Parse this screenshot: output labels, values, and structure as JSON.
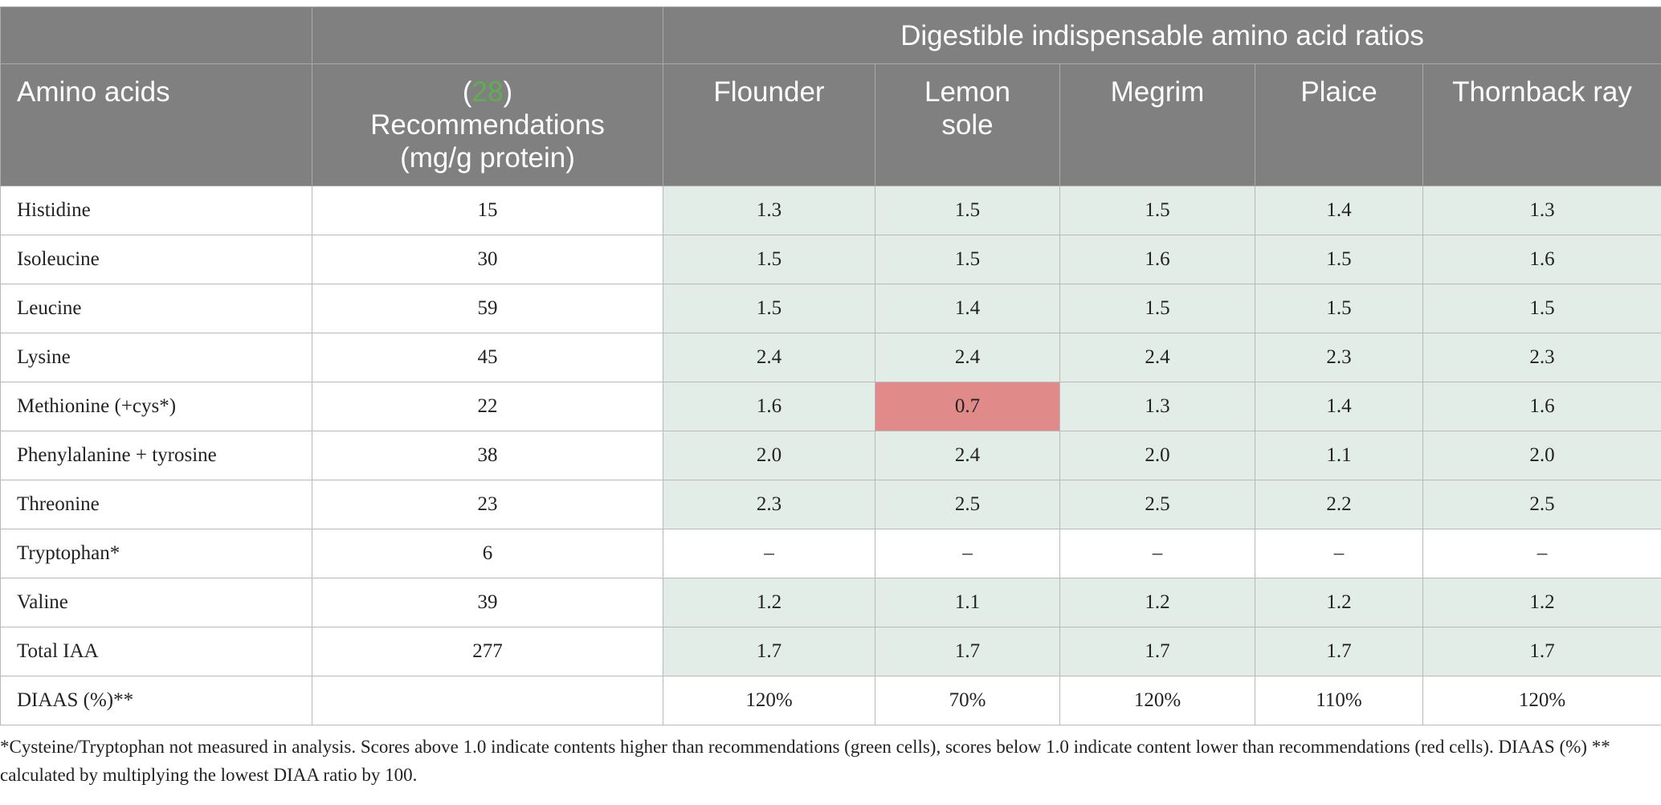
{
  "header": {
    "group_title": "Digestible indispensable amino acid ratios",
    "col_amino": "Amino acids",
    "rec_ref_open": "(",
    "rec_ref": "28",
    "rec_ref_close": ")",
    "rec_line2": "Recommendations",
    "rec_line3": "(mg/g protein)",
    "species": [
      "Flounder",
      "Lemon\nsole",
      "Megrim",
      "Plaice",
      "Thornback ray"
    ]
  },
  "colors": {
    "header_bg": "#7f807f",
    "green_cell": "#e3ede8",
    "red_cell": "#e08a8a",
    "reference_green": "#5fae4f"
  },
  "rows": [
    {
      "name": "Histidine",
      "rec": "15",
      "values": [
        "1.3",
        "1.5",
        "1.5",
        "1.4",
        "1.3"
      ],
      "status": [
        "g",
        "g",
        "g",
        "g",
        "g"
      ]
    },
    {
      "name": "Isoleucine",
      "rec": "30",
      "values": [
        "1.5",
        "1.5",
        "1.6",
        "1.5",
        "1.6"
      ],
      "status": [
        "g",
        "g",
        "g",
        "g",
        "g"
      ]
    },
    {
      "name": "Leucine",
      "rec": "59",
      "values": [
        "1.5",
        "1.4",
        "1.5",
        "1.5",
        "1.5"
      ],
      "status": [
        "g",
        "g",
        "g",
        "g",
        "g"
      ]
    },
    {
      "name": "Lysine",
      "rec": "45",
      "values": [
        "2.4",
        "2.4",
        "2.4",
        "2.3",
        "2.3"
      ],
      "status": [
        "g",
        "g",
        "g",
        "g",
        "g"
      ]
    },
    {
      "name": "Methionine (+cys*)",
      "rec": "22",
      "values": [
        "1.6",
        "0.7",
        "1.3",
        "1.4",
        "1.6"
      ],
      "status": [
        "g",
        "r",
        "g",
        "g",
        "g"
      ]
    },
    {
      "name": "Phenylalanine + tyrosine",
      "rec": "38",
      "values": [
        "2.0",
        "2.4",
        "2.0",
        "1.1",
        "2.0"
      ],
      "status": [
        "g",
        "g",
        "g",
        "g",
        "g"
      ]
    },
    {
      "name": "Threonine",
      "rec": "23",
      "values": [
        "2.3",
        "2.5",
        "2.5",
        "2.2",
        "2.5"
      ],
      "status": [
        "g",
        "g",
        "g",
        "g",
        "g"
      ]
    },
    {
      "name": "Tryptophan*",
      "rec": "6",
      "values": [
        "–",
        "–",
        "–",
        "–",
        "–"
      ],
      "status": [
        "w",
        "w",
        "w",
        "w",
        "w"
      ]
    },
    {
      "name": "Valine",
      "rec": "39",
      "values": [
        "1.2",
        "1.1",
        "1.2",
        "1.2",
        "1.2"
      ],
      "status": [
        "g",
        "g",
        "g",
        "g",
        "g"
      ]
    },
    {
      "name": "Total IAA",
      "rec": "277",
      "values": [
        "1.7",
        "1.7",
        "1.7",
        "1.7",
        "1.7"
      ],
      "status": [
        "g",
        "g",
        "g",
        "g",
        "g"
      ]
    },
    {
      "name": "DIAAS (%)**",
      "rec": "",
      "values": [
        "120%",
        "70%",
        "120%",
        "110%",
        "120%"
      ],
      "status": [
        "w",
        "w",
        "w",
        "w",
        "w"
      ]
    }
  ],
  "footnote": "*Cysteine/Tryptophan not measured in analysis. Scores above 1.0 indicate contents higher than recommendations (green cells), scores below 1.0 indicate content lower than recommendations (red cells). DIAAS (%) ** calculated by multiplying the lowest DIAA ratio by 100."
}
